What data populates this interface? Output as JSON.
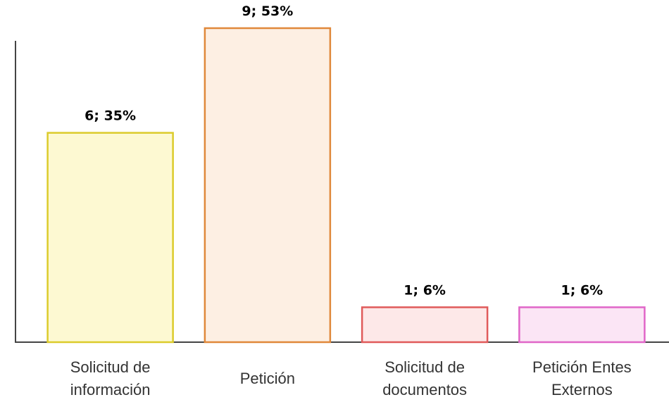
{
  "chart_data": {
    "type": "bar",
    "categories": [
      "Solicitud de información",
      "Petición",
      "Solicitud de documentos",
      "Petición Entes Externos"
    ],
    "values": [
      6,
      9,
      1,
      1
    ],
    "value_labels": [
      "6; 35%",
      "9; 53%",
      "1; 6%",
      "1; 6%"
    ],
    "colors": [
      "#fdf9d2",
      "#fdefe3",
      "#fde8e8",
      "#fbe5f5"
    ],
    "edge_colors": [
      "#dccb2b",
      "#e0883a",
      "#e05a5a",
      "#e066c8"
    ],
    "ylim": [
      0,
      9
    ]
  }
}
